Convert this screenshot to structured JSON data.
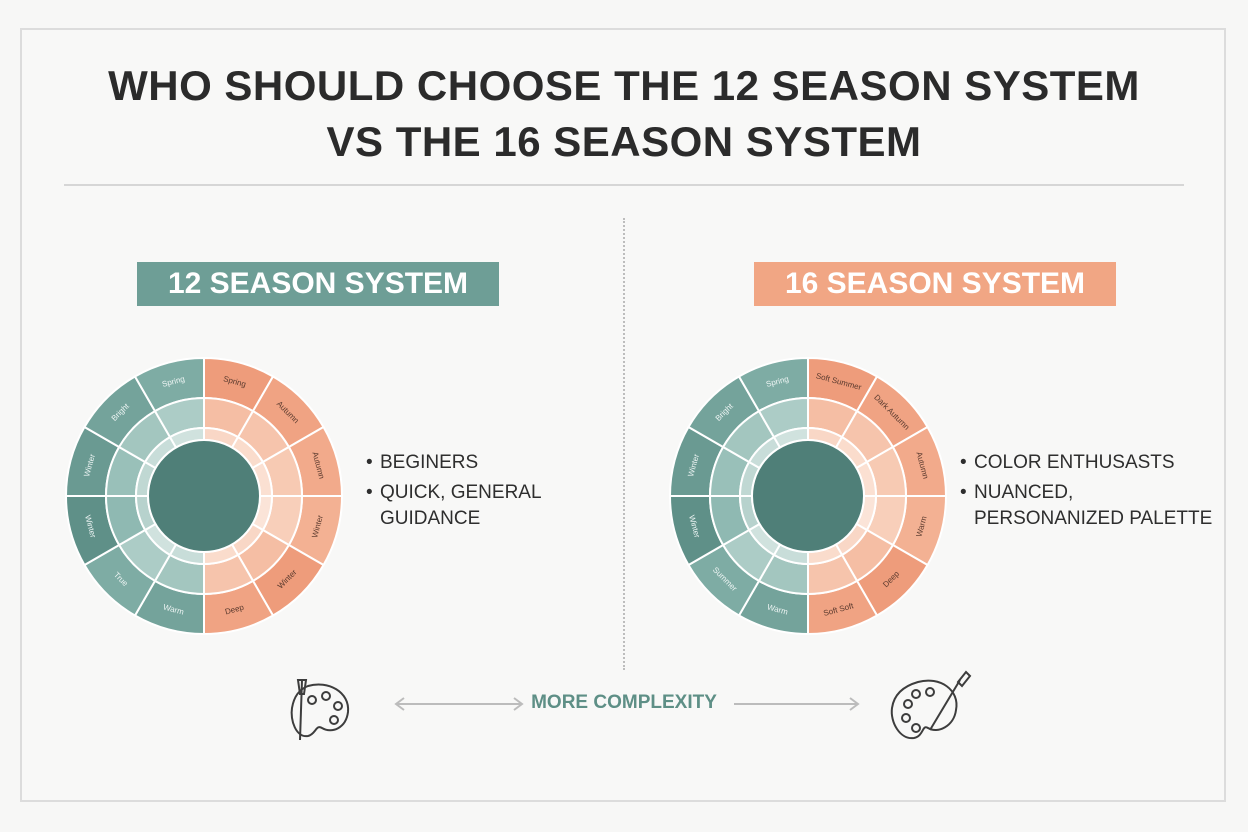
{
  "title": {
    "line1": "WHO SHOULD CHOOSE THE 12 SEASON SYSTEM",
    "line2": "VS THE 16 SEASON SYSTEM"
  },
  "colors": {
    "teal": "#6e9e96",
    "coral": "#f1a684",
    "dark_teal": "#4f7f78"
  },
  "left": {
    "banner": "12 SEASON SYSTEM",
    "bullets": [
      "BEGINERS",
      "QUICK, GENERAL GUIDANCE"
    ],
    "wheel_labels": [
      "Spring",
      "Autumn",
      "Autumn",
      "Winter",
      "Winter",
      "Deep",
      "Warm",
      "True",
      "Winter",
      "Winter",
      "Bright",
      "Spring",
      "True"
    ]
  },
  "right": {
    "banner": "16 SEASON SYSTEM",
    "bullets": [
      "COLOR ENTHUSASTS",
      "NUANCED, PERSONANIZED PALETTE"
    ],
    "wheel_labels": [
      "Soft Summer",
      "Dark Autumn",
      "Autumn",
      "Warm",
      "Deep",
      "Soft Soft",
      "Warm",
      "Summer",
      "Winter",
      "Winter",
      "Bright",
      "Spring",
      "Soft Summer"
    ]
  },
  "complexity_label": "MORE COMPLEXITY",
  "icons": {
    "left": "palette-brush-icon",
    "right": "palette-brush-icon"
  }
}
